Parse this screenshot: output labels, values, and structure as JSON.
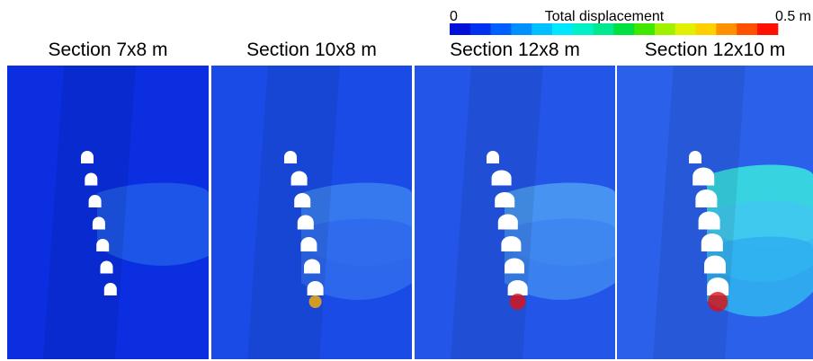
{
  "colorbar": {
    "min_label": "0",
    "title": "Total displacement",
    "max_label": "0.5 m"
  },
  "panels": [
    {
      "title": "Section 7x8 m"
    },
    {
      "title": "Section 10x8 m"
    },
    {
      "title": "Section 12x8 m"
    },
    {
      "title": "Section 12x10 m"
    }
  ]
}
